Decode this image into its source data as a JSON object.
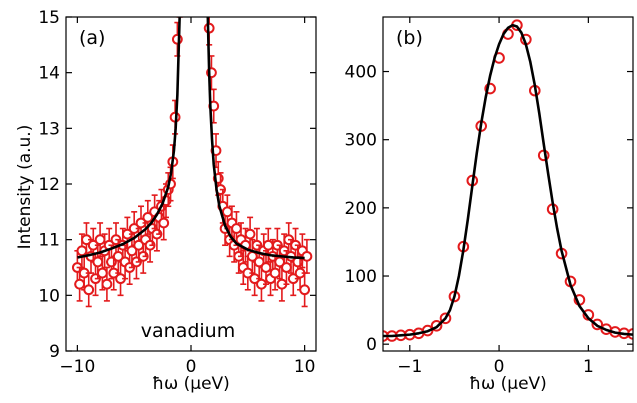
{
  "ylabel_left": "Intensity (a.u.)",
  "chart_data": [
    {
      "type": "scatter",
      "panel_label": "(a)",
      "annotation": "vanadium",
      "xlabel": "ħω (μeV)",
      "ylabel": "Intensity (a.u.)",
      "xlim": [
        -11,
        11
      ],
      "ylim": [
        9,
        15
      ],
      "xticks": [
        -10,
        0,
        10
      ],
      "yticks": [
        9,
        10,
        11,
        12,
        13,
        14,
        15
      ],
      "grid": false,
      "colors": {
        "data": "#e31a1c",
        "fit": "#000000"
      },
      "series": [
        {
          "kind": "data_with_errorbars",
          "x": [
            -10.0,
            -9.8,
            -9.6,
            -9.4,
            -9.2,
            -9.0,
            -8.8,
            -8.6,
            -8.4,
            -8.2,
            -8.0,
            -7.8,
            -7.6,
            -7.4,
            -7.2,
            -7.0,
            -6.8,
            -6.6,
            -6.4,
            -6.2,
            -6.0,
            -5.8,
            -5.6,
            -5.4,
            -5.2,
            -5.0,
            -4.8,
            -4.6,
            -4.4,
            -4.2,
            -4.0,
            -3.8,
            -3.6,
            -3.4,
            -3.2,
            -3.0,
            -2.8,
            -2.6,
            -2.4,
            -2.2,
            -2.0,
            -1.8,
            -1.6,
            -1.4,
            -1.2,
            -1.0,
            1.6,
            1.8,
            2.0,
            2.2,
            2.4,
            2.6,
            2.8,
            3.0,
            3.2,
            3.4,
            3.6,
            3.8,
            4.0,
            4.2,
            4.4,
            4.6,
            4.8,
            5.0,
            5.2,
            5.4,
            5.6,
            5.8,
            6.0,
            6.2,
            6.4,
            6.6,
            6.8,
            7.0,
            7.2,
            7.4,
            7.6,
            7.8,
            8.0,
            8.2,
            8.4,
            8.6,
            8.8,
            9.0,
            9.2,
            9.4,
            9.6,
            9.8,
            10.0,
            10.2
          ],
          "y": [
            10.5,
            10.2,
            10.8,
            10.4,
            11.0,
            10.1,
            10.7,
            10.9,
            10.3,
            10.6,
            11.0,
            10.4,
            10.8,
            10.2,
            10.9,
            10.6,
            10.4,
            11.0,
            10.7,
            10.3,
            10.9,
            10.6,
            11.1,
            10.5,
            10.8,
            11.2,
            10.6,
            10.9,
            11.3,
            10.7,
            11.0,
            11.4,
            10.9,
            11.2,
            11.5,
            11.1,
            11.4,
            11.6,
            11.3,
            11.7,
            11.9,
            12.0,
            12.4,
            13.2,
            14.6,
            15.3,
            14.8,
            14.0,
            13.4,
            12.6,
            12.1,
            11.9,
            11.6,
            11.2,
            11.5,
            11.0,
            11.3,
            10.9,
            11.2,
            10.7,
            11.0,
            10.5,
            10.9,
            10.4,
            11.1,
            10.7,
            10.3,
            10.9,
            10.6,
            10.2,
            10.8,
            10.5,
            10.9,
            10.3,
            10.7,
            10.4,
            10.9,
            10.6,
            10.2,
            10.8,
            10.5,
            11.0,
            10.7,
            10.3,
            10.9,
            10.6,
            10.4,
            10.8,
            10.1,
            10.7
          ],
          "yerr": 0.3
        },
        {
          "kind": "fit_curve",
          "x": [
            -10.0,
            -9.0,
            -8.0,
            -7.0,
            -6.0,
            -5.0,
            -4.0,
            -3.5,
            -3.0,
            -2.5,
            -2.0,
            -1.75,
            -1.5,
            -1.35,
            -1.2,
            -1.1,
            -1.0,
            -0.95,
            1.45,
            1.5,
            1.6,
            1.7,
            1.85,
            2.0,
            2.25,
            2.5,
            3.0,
            3.5,
            4.0,
            5.0,
            6.0,
            7.0,
            8.0,
            9.0,
            10.0
          ],
          "y": [
            10.68,
            10.72,
            10.77,
            10.84,
            10.92,
            11.03,
            11.19,
            11.3,
            11.45,
            11.65,
            11.95,
            12.2,
            12.6,
            13.0,
            13.6,
            14.3,
            15.0,
            15.3,
            15.3,
            14.8,
            14.0,
            13.4,
            12.8,
            12.35,
            11.9,
            11.6,
            11.25,
            11.05,
            10.93,
            10.82,
            10.76,
            10.72,
            10.7,
            10.68,
            10.67
          ]
        }
      ]
    },
    {
      "type": "scatter",
      "panel_label": "(b)",
      "xlabel": "ħω (μeV)",
      "ylabel": "",
      "xlim": [
        -1.3,
        1.5
      ],
      "ylim": [
        -10,
        480
      ],
      "xticks": [
        -1,
        0,
        1
      ],
      "yticks": [
        0,
        100,
        200,
        300,
        400
      ],
      "grid": false,
      "colors": {
        "data": "#e31a1c",
        "fit": "#000000"
      },
      "series": [
        {
          "kind": "data",
          "x": [
            -1.3,
            -1.2,
            -1.1,
            -1.0,
            -0.9,
            -0.8,
            -0.7,
            -0.6,
            -0.5,
            -0.4,
            -0.3,
            -0.2,
            -0.1,
            0.0,
            0.1,
            0.2,
            0.3,
            0.4,
            0.5,
            0.6,
            0.7,
            0.8,
            0.9,
            1.0,
            1.1,
            1.2,
            1.3,
            1.4,
            1.5
          ],
          "y": [
            12,
            12,
            13,
            14,
            16,
            20,
            27,
            38,
            70,
            143,
            240,
            320,
            375,
            420,
            455,
            468,
            447,
            372,
            277,
            198,
            133,
            92,
            65,
            43,
            29,
            22,
            18,
            16,
            15
          ]
        },
        {
          "kind": "fit_curve",
          "x": [
            -1.3,
            -1.2,
            -1.1,
            -1.0,
            -0.9,
            -0.8,
            -0.7,
            -0.6,
            -0.55,
            -0.5,
            -0.45,
            -0.4,
            -0.35,
            -0.3,
            -0.25,
            -0.2,
            -0.15,
            -0.1,
            -0.05,
            0.0,
            0.05,
            0.1,
            0.15,
            0.2,
            0.25,
            0.3,
            0.35,
            0.4,
            0.45,
            0.5,
            0.55,
            0.6,
            0.65,
            0.7,
            0.8,
            0.9,
            1.0,
            1.1,
            1.2,
            1.3,
            1.4,
            1.5
          ],
          "y": [
            12,
            12,
            13,
            14,
            16,
            19,
            25,
            38,
            50,
            70,
            100,
            138,
            183,
            232,
            280,
            324,
            362,
            394,
            420,
            440,
            455,
            464,
            468,
            466,
            457,
            440,
            414,
            380,
            339,
            294,
            250,
            208,
            170,
            137,
            87,
            56,
            38,
            27,
            21,
            17,
            15,
            14
          ]
        }
      ]
    }
  ]
}
